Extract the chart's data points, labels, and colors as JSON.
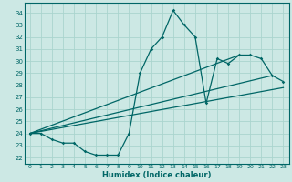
{
  "title": "",
  "xlabel": "Humidex (Indice chaleur)",
  "bg_color": "#cce8e4",
  "grid_color": "#aad4ce",
  "line_color": "#006666",
  "xlim": [
    -0.5,
    23.5
  ],
  "ylim": [
    21.5,
    34.8
  ],
  "yticks": [
    22,
    23,
    24,
    25,
    26,
    27,
    28,
    29,
    30,
    31,
    32,
    33,
    34
  ],
  "xticks": [
    0,
    1,
    2,
    3,
    4,
    5,
    6,
    7,
    8,
    9,
    10,
    11,
    12,
    13,
    14,
    15,
    16,
    17,
    18,
    19,
    20,
    21,
    22,
    23
  ],
  "curve1_x": [
    0,
    1,
    2,
    3,
    4,
    5,
    6,
    7,
    8,
    9,
    10,
    11,
    12,
    13,
    14,
    15,
    16,
    17,
    18,
    19,
    20,
    21,
    22,
    23
  ],
  "curve1_y": [
    24.0,
    24.0,
    23.5,
    23.2,
    23.2,
    22.5,
    22.2,
    22.2,
    22.2,
    24.0,
    29.0,
    31.0,
    32.0,
    34.2,
    33.0,
    32.0,
    26.5,
    30.2,
    29.8,
    30.5,
    30.5,
    30.2,
    28.8,
    28.3
  ],
  "line1_x": [
    0,
    23
  ],
  "line1_y": [
    24.0,
    27.8
  ],
  "line2_x": [
    0,
    19
  ],
  "line2_y": [
    24.0,
    30.5
  ],
  "line3_x": [
    0,
    22
  ],
  "line3_y": [
    24.0,
    28.8
  ]
}
